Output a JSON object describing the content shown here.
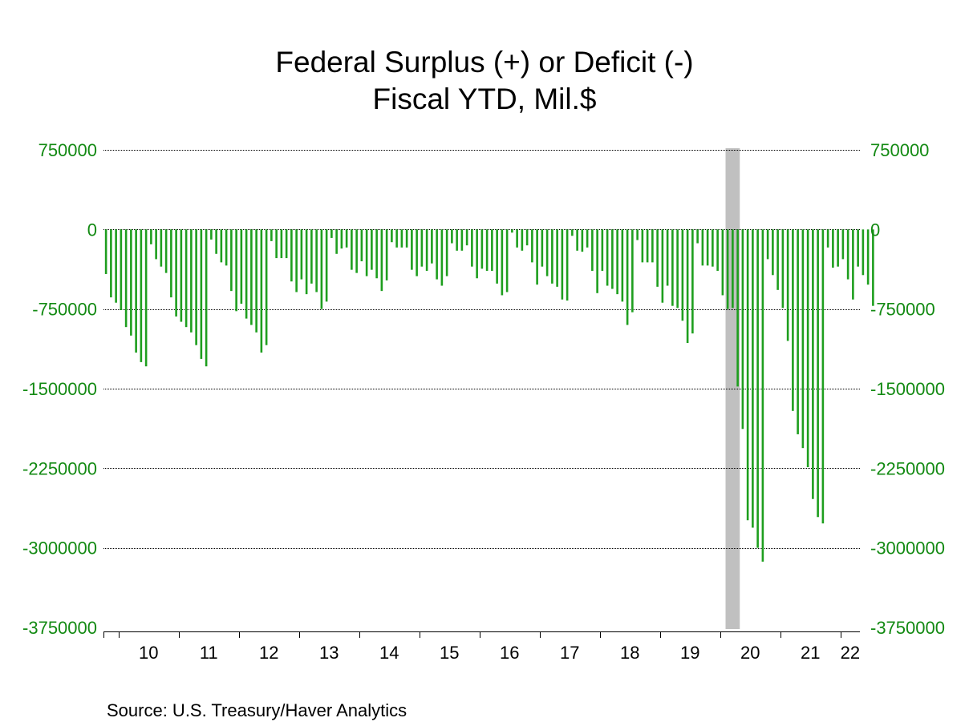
{
  "chart_data": {
    "type": "bar",
    "title": "Federal Surplus (+) or Deficit (-)",
    "subtitle": "Fiscal YTD, Mil.$",
    "source": "Source:  U.S. Treasury/Haver Analytics",
    "ylim": [
      -3750000,
      750000
    ],
    "y_ticks": [
      750000,
      0,
      -750000,
      -1500000,
      -2250000,
      -3000000,
      -3750000
    ],
    "y_tick_labels": [
      "750000",
      "0",
      "-750000",
      "-1500000",
      "-2250000",
      "-3000000",
      "-3750000"
    ],
    "x_tick_labels": [
      "10",
      "11",
      "12",
      "13",
      "14",
      "15",
      "16",
      "17",
      "18",
      "19",
      "20",
      "21",
      "22"
    ],
    "x_start": "2009-10",
    "grid": true,
    "dual_y_axis": true,
    "shaded_period": {
      "start": "2020-02",
      "end": "2020-04",
      "label": "recession"
    },
    "colors": {
      "bars": "#1e9e1e",
      "axis_text": "#138a13",
      "shading": "#c0c0c0",
      "text": "#000000",
      "grid": "#000000"
    },
    "series": [
      {
        "values": [
          -420000,
          -640000,
          -690000,
          -760000,
          -920000,
          -1000000,
          -1160000,
          -1250000,
          -1290000,
          -140000,
          -280000,
          -350000,
          -410000,
          -640000,
          -820000,
          -870000,
          -920000,
          -970000,
          -1090000,
          -1220000,
          -1290000,
          -95000,
          -230000,
          -310000,
          -340000,
          -580000,
          -770000,
          -700000,
          -840000,
          -900000,
          -970000,
          -1160000,
          -1090000,
          -110000,
          -270000,
          -270000,
          -270000,
          -490000,
          -590000,
          -470000,
          -610000,
          -510000,
          -590000,
          -750000,
          -680000,
          -80000,
          -230000,
          -180000,
          -170000,
          -380000,
          -410000,
          -300000,
          -440000,
          -380000,
          -460000,
          -580000,
          -480000,
          -120000,
          -170000,
          -170000,
          -170000,
          -380000,
          -440000,
          -350000,
          -390000,
          -320000,
          -470000,
          -530000,
          -440000,
          -130000,
          -200000,
          -200000,
          -150000,
          -350000,
          -460000,
          -370000,
          -390000,
          -390000,
          -510000,
          -620000,
          -590000,
          -30000,
          -170000,
          -200000,
          -150000,
          -310000,
          -520000,
          -350000,
          -440000,
          -510000,
          -540000,
          -660000,
          -670000,
          -60000,
          -200000,
          -210000,
          -170000,
          -390000,
          -600000,
          -390000,
          -530000,
          -560000,
          -610000,
          -680000,
          -900000,
          -780000,
          -100000,
          -310000,
          -310000,
          -310000,
          -540000,
          -690000,
          -530000,
          -720000,
          -740000,
          -860000,
          -1070000,
          -980000,
          -130000,
          -340000,
          -340000,
          -350000,
          -390000,
          -620000,
          -750000,
          -740000,
          -1480000,
          -1880000,
          -2740000,
          -2810000,
          -3000000,
          -3130000,
          -280000,
          -430000,
          -570000,
          -740000,
          -1050000,
          -1710000,
          -1930000,
          -2060000,
          -2240000,
          -2540000,
          -2710000,
          -2770000,
          -170000,
          -360000,
          -350000,
          -280000,
          -470000,
          -660000,
          -350000,
          -430000,
          -520000,
          -720000
        ]
      }
    ]
  }
}
